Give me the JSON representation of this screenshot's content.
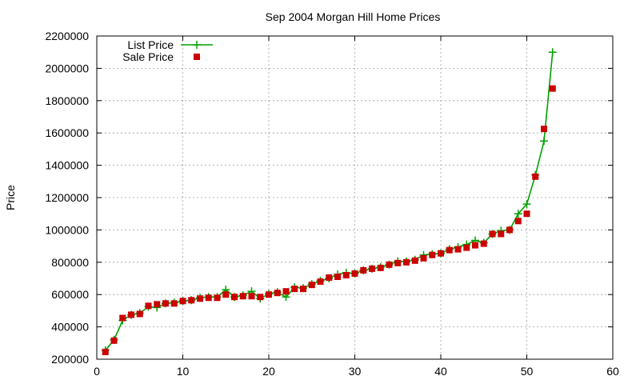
{
  "chart_data": {
    "type": "line",
    "title": "Sep 2004 Morgan Hill Home Prices",
    "xlabel": "",
    "ylabel": "Price",
    "xlim": [
      0,
      60
    ],
    "ylim": [
      200000,
      2200000
    ],
    "x_ticks": [
      0,
      10,
      20,
      30,
      40,
      50,
      60
    ],
    "y_ticks": [
      200000,
      400000,
      600000,
      800000,
      1000000,
      1200000,
      1400000,
      1600000,
      1800000,
      2000000,
      2200000
    ],
    "grid": true,
    "legend_position": "top-left",
    "x": [
      1,
      2,
      3,
      4,
      5,
      6,
      7,
      8,
      9,
      10,
      11,
      12,
      13,
      14,
      15,
      16,
      17,
      18,
      19,
      20,
      21,
      22,
      23,
      24,
      25,
      26,
      27,
      28,
      29,
      30,
      31,
      32,
      33,
      34,
      35,
      36,
      37,
      38,
      39,
      40,
      41,
      42,
      43,
      44,
      45,
      46,
      47,
      48,
      49,
      50,
      51,
      52,
      53
    ],
    "series": [
      {
        "name": "List Price",
        "style": "line-plus",
        "color": "#00a000",
        "values": [
          255000,
          320000,
          440000,
          475000,
          485000,
          525000,
          520000,
          545000,
          550000,
          560000,
          565000,
          580000,
          585000,
          585000,
          630000,
          585000,
          595000,
          620000,
          575000,
          605000,
          615000,
          585000,
          645000,
          640000,
          665000,
          685000,
          700000,
          725000,
          735000,
          730000,
          750000,
          760000,
          770000,
          785000,
          805000,
          805000,
          815000,
          845000,
          850000,
          855000,
          880000,
          895000,
          910000,
          935000,
          920000,
          975000,
          995000,
          1000000,
          1100000,
          1160000,
          1340000,
          1550000,
          2100000
        ]
      },
      {
        "name": "Sale Price",
        "style": "points-square",
        "color": "#cc0000",
        "values": [
          245000,
          315000,
          455000,
          475000,
          480000,
          530000,
          540000,
          545000,
          545000,
          560000,
          565000,
          575000,
          580000,
          580000,
          600000,
          585000,
          590000,
          590000,
          585000,
          600000,
          610000,
          620000,
          635000,
          635000,
          660000,
          680000,
          705000,
          710000,
          720000,
          730000,
          750000,
          760000,
          765000,
          785000,
          795000,
          800000,
          810000,
          825000,
          845000,
          855000,
          875000,
          880000,
          890000,
          905000,
          915000,
          975000,
          975000,
          1000000,
          1055000,
          1100000,
          1330000,
          1625000,
          1875000
        ]
      }
    ]
  }
}
